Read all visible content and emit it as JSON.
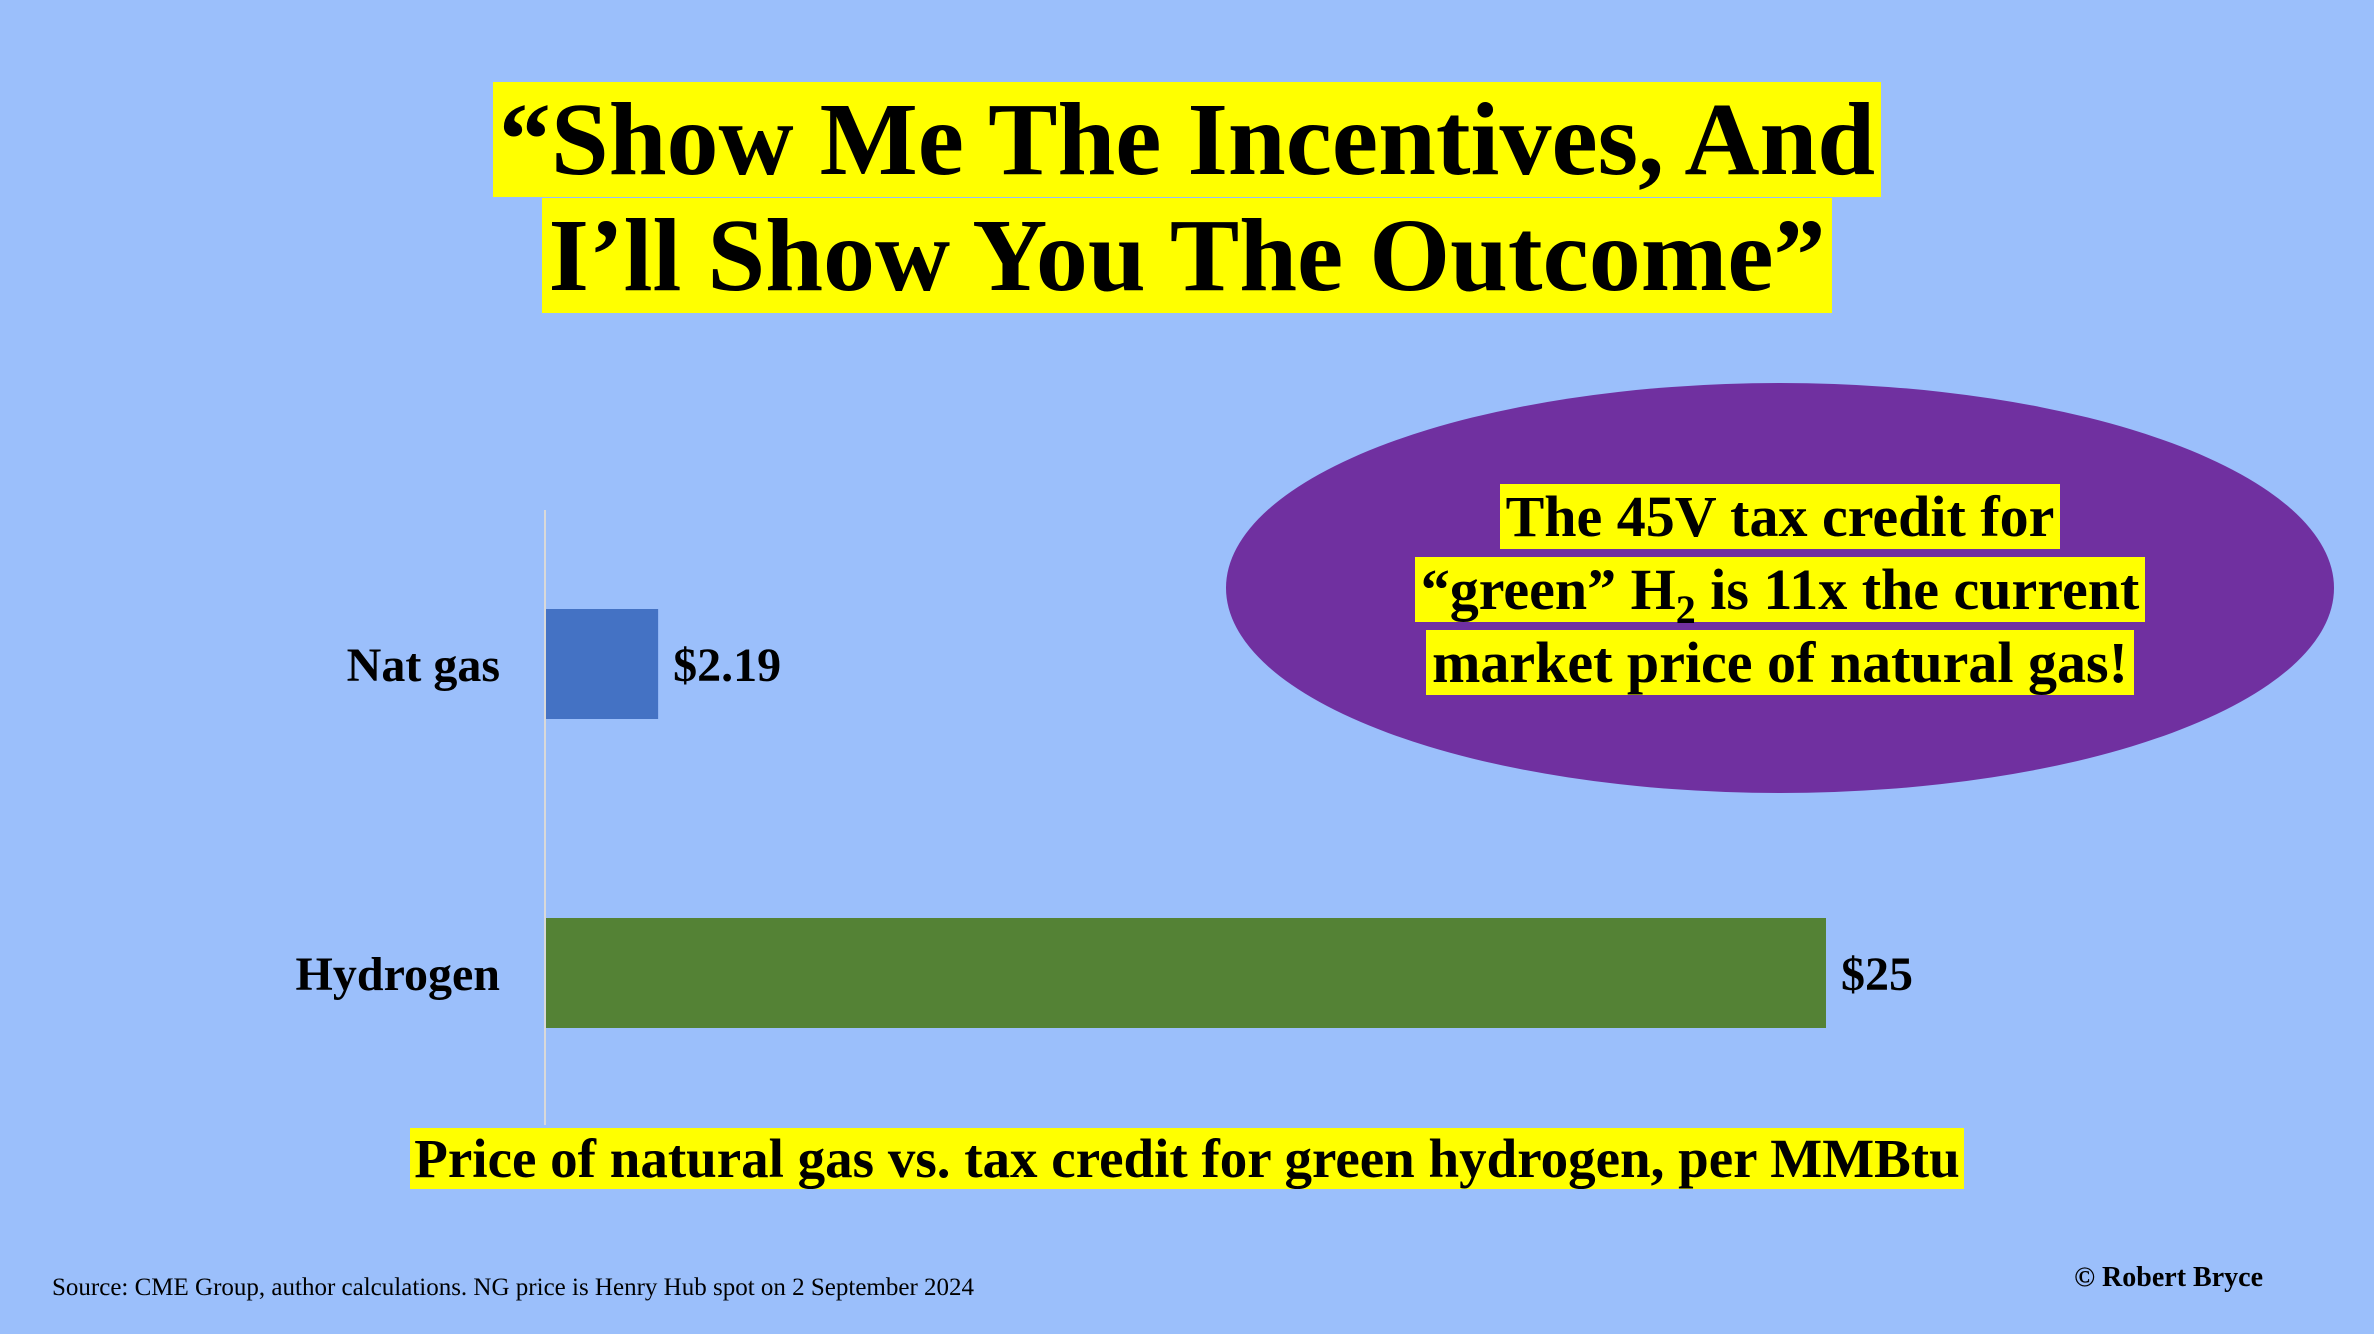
{
  "title": {
    "line1": "“Show Me The Incentives, And",
    "line2": "I’ll Show You The Outcome”"
  },
  "callout": {
    "line1": "The 45V tax credit for",
    "line2_pre": "“green” H",
    "line2_sub": "2",
    "line2_post": "is 11x the current",
    "line3": "market price of natural gas!"
  },
  "chart_data": {
    "type": "bar",
    "orientation": "horizontal",
    "categories": [
      "Nat gas",
      "Hydrogen"
    ],
    "values": [
      2.19,
      25
    ],
    "value_labels": [
      "$2.19",
      "$25"
    ],
    "colors": [
      "#4472c4",
      "#548235"
    ],
    "xlim": [
      0,
      25
    ],
    "title": "Price of natural gas vs. tax credit for green hydrogen, per MMBtu",
    "grid": false
  },
  "footer": {
    "source": "Source: CME Group, author calculations.  NG price is Henry Hub spot on 2 September 2024",
    "copyright": "© Robert Bryce"
  },
  "colors": {
    "background": "#9bbffb",
    "highlight": "#ffff00",
    "oval": "#7030a0"
  }
}
